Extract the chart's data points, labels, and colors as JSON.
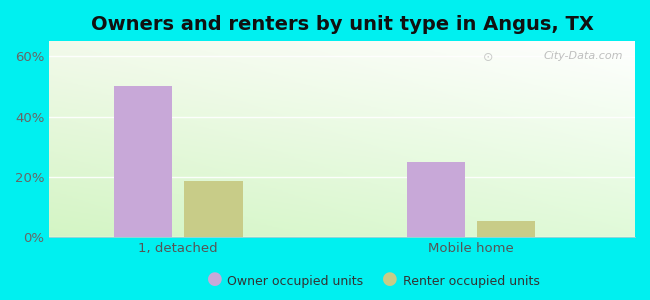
{
  "title": "Owners and renters by unit type in Angus, TX",
  "categories": [
    "1, detached",
    "Mobile home"
  ],
  "owner_values": [
    50.0,
    25.0
  ],
  "renter_values": [
    18.5,
    5.5
  ],
  "owner_color": "#c8a8d8",
  "renter_color": "#c8cc88",
  "ylim": [
    0,
    65
  ],
  "yticks": [
    0,
    20,
    40,
    60
  ],
  "ytick_labels": [
    "0%",
    "20%",
    "40%",
    "60%"
  ],
  "background_outer": "#00f0f0",
  "legend_labels": [
    "Owner occupied units",
    "Renter occupied units"
  ],
  "watermark": "City-Data.com",
  "title_fontsize": 14,
  "axis_fontsize": 9.5
}
